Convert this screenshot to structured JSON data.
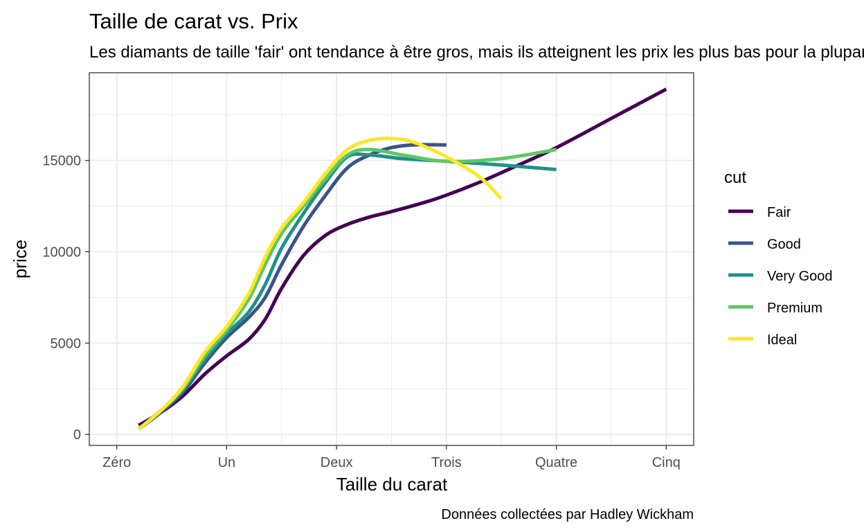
{
  "chart_data": {
    "type": "line",
    "title": "Taille de carat vs. Prix",
    "subtitle": "Les diamants de taille 'fair' ont tendance à être gros, mais ils atteignent les prix les plus bas pour la plupart des tailles de carats.",
    "xlabel": "Taille du carat",
    "ylabel": "price",
    "caption": "Données collectées par Hadley Wickham",
    "xlim": [
      -0.25,
      5.25
    ],
    "ylim": [
      -600,
      19800
    ],
    "x_ticks": [
      {
        "value": 0,
        "label": "Zéro"
      },
      {
        "value": 1,
        "label": "Un"
      },
      {
        "value": 2,
        "label": "Deux"
      },
      {
        "value": 3,
        "label": "Trois"
      },
      {
        "value": 4,
        "label": "Quatre"
      },
      {
        "value": 5,
        "label": "Cinq"
      }
    ],
    "y_ticks": [
      {
        "value": 0,
        "label": "0"
      },
      {
        "value": 5000,
        "label": "5000"
      },
      {
        "value": 10000,
        "label": "10000"
      },
      {
        "value": 15000,
        "label": "15000"
      }
    ],
    "grid": true,
    "legend": {
      "title": "cut",
      "position": "right"
    },
    "series": [
      {
        "name": "Fair",
        "color": "#440154",
        "points": [
          [
            0.2,
            500
          ],
          [
            0.4,
            1200
          ],
          [
            0.6,
            2100
          ],
          [
            0.8,
            3300
          ],
          [
            1.0,
            4300
          ],
          [
            1.2,
            5200
          ],
          [
            1.35,
            6300
          ],
          [
            1.5,
            8000
          ],
          [
            1.7,
            9800
          ],
          [
            1.9,
            10900
          ],
          [
            2.1,
            11500
          ],
          [
            2.3,
            11900
          ],
          [
            2.5,
            12200
          ],
          [
            2.8,
            12700
          ],
          [
            3.0,
            13100
          ],
          [
            3.3,
            13800
          ],
          [
            3.6,
            14600
          ],
          [
            4.0,
            15700
          ],
          [
            4.5,
            17300
          ],
          [
            5.0,
            18900
          ]
        ]
      },
      {
        "name": "Good",
        "color": "#3B528B",
        "points": [
          [
            0.2,
            300
          ],
          [
            0.4,
            1200
          ],
          [
            0.6,
            2300
          ],
          [
            0.8,
            3900
          ],
          [
            1.0,
            5300
          ],
          [
            1.2,
            6400
          ],
          [
            1.35,
            7500
          ],
          [
            1.5,
            9300
          ],
          [
            1.7,
            11400
          ],
          [
            1.9,
            13100
          ],
          [
            2.1,
            14600
          ],
          [
            2.3,
            15300
          ],
          [
            2.5,
            15700
          ],
          [
            2.7,
            15850
          ],
          [
            3.0,
            15850
          ]
        ]
      },
      {
        "name": "Very Good",
        "color": "#21908C",
        "points": [
          [
            0.2,
            300
          ],
          [
            0.4,
            1300
          ],
          [
            0.6,
            2400
          ],
          [
            0.8,
            4100
          ],
          [
            1.0,
            5500
          ],
          [
            1.2,
            6700
          ],
          [
            1.35,
            8200
          ],
          [
            1.5,
            10200
          ],
          [
            1.7,
            12100
          ],
          [
            1.9,
            13800
          ],
          [
            2.1,
            15200
          ],
          [
            2.3,
            15300
          ],
          [
            2.6,
            15100
          ],
          [
            3.0,
            14950
          ],
          [
            3.5,
            14750
          ],
          [
            4.0,
            14500
          ]
        ]
      },
      {
        "name": "Premium",
        "color": "#5DC863",
        "points": [
          [
            0.2,
            300
          ],
          [
            0.4,
            1300
          ],
          [
            0.6,
            2500
          ],
          [
            0.8,
            4300
          ],
          [
            1.0,
            5700
          ],
          [
            1.2,
            7400
          ],
          [
            1.35,
            9300
          ],
          [
            1.5,
            11000
          ],
          [
            1.7,
            12500
          ],
          [
            1.9,
            14000
          ],
          [
            2.1,
            15300
          ],
          [
            2.3,
            15600
          ],
          [
            2.6,
            15300
          ],
          [
            3.0,
            14950
          ],
          [
            3.5,
            15100
          ],
          [
            4.0,
            15600
          ]
        ]
      },
      {
        "name": "Ideal",
        "color": "#FDE725",
        "points": [
          [
            0.2,
            300
          ],
          [
            0.4,
            1300
          ],
          [
            0.6,
            2600
          ],
          [
            0.8,
            4500
          ],
          [
            1.0,
            5900
          ],
          [
            1.2,
            7700
          ],
          [
            1.35,
            9700
          ],
          [
            1.5,
            11300
          ],
          [
            1.7,
            12700
          ],
          [
            1.9,
            14300
          ],
          [
            2.1,
            15600
          ],
          [
            2.3,
            16100
          ],
          [
            2.5,
            16200
          ],
          [
            2.7,
            16000
          ],
          [
            3.0,
            15200
          ],
          [
            3.3,
            14100
          ],
          [
            3.5,
            12900
          ]
        ]
      }
    ]
  }
}
